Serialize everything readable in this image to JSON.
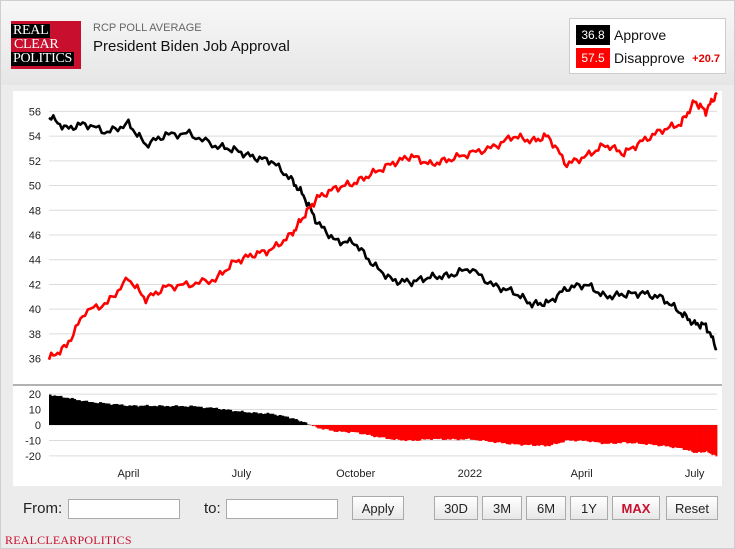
{
  "header": {
    "logo_lines": [
      "REAL",
      "CLEAR",
      "POLITICS"
    ],
    "source": "RCP POLL AVERAGE",
    "title": "President Biden Job Approval"
  },
  "legend": {
    "approve_value": "36.8",
    "approve_label": "Approve",
    "disapprove_value": "57.5",
    "disapprove_label": "Disapprove",
    "spread": "+20.7",
    "approve_color": "#000000",
    "disapprove_color": "#ff0000"
  },
  "controls": {
    "from_label": "From:",
    "to_label": "to:",
    "apply_label": "Apply",
    "ranges": [
      "30D",
      "3M",
      "6M",
      "1Y",
      "MAX"
    ],
    "active_range": "MAX",
    "reset_label": "Reset"
  },
  "footer": {
    "brand": "REALCLEARPOLITICS"
  },
  "chart_data": {
    "type": "line",
    "x_ticks": [
      "April",
      "July",
      "October",
      "2022",
      "April",
      "July"
    ],
    "y_ticks_main": [
      36,
      38,
      40,
      42,
      44,
      46,
      48,
      50,
      52,
      54,
      56
    ],
    "y_ticks_spread": [
      20,
      10,
      0,
      -10,
      -20
    ],
    "ylim_main": [
      35,
      57
    ],
    "ylim_spread": [
      -22,
      22
    ],
    "grid": true,
    "x": [
      "2021-01-27",
      "2021-02-10",
      "2021-02-25",
      "2021-03-15",
      "2021-04-01",
      "2021-04-15",
      "2021-05-01",
      "2021-05-20",
      "2021-06-10",
      "2021-06-25",
      "2021-07-10",
      "2021-07-25",
      "2021-08-10",
      "2021-08-20",
      "2021-08-31",
      "2021-09-15",
      "2021-09-30",
      "2021-10-15",
      "2021-10-31",
      "2021-11-15",
      "2021-11-30",
      "2021-12-15",
      "2022-01-01",
      "2022-01-20",
      "2022-02-05",
      "2022-02-20",
      "2022-03-05",
      "2022-03-20",
      "2022-04-05",
      "2022-04-20",
      "2022-05-05",
      "2022-05-20",
      "2022-06-05",
      "2022-06-20",
      "2022-07-01",
      "2022-07-10",
      "2022-07-19"
    ],
    "series": [
      {
        "name": "Approve",
        "color": "#000000",
        "values": [
          55.6,
          54.6,
          55.0,
          54.3,
          55.0,
          53.3,
          54.1,
          54.2,
          53.2,
          52.9,
          52.3,
          52.0,
          50.5,
          49.2,
          47.0,
          45.5,
          45.4,
          43.6,
          42.3,
          42.2,
          42.6,
          42.7,
          43.3,
          41.9,
          41.4,
          40.4,
          40.5,
          41.7,
          42.0,
          41.0,
          41.2,
          41.3,
          40.9,
          39.7,
          38.8,
          38.7,
          36.8
        ]
      },
      {
        "name": "Disapprove",
        "color": "#ff0000",
        "values": [
          36.0,
          37.0,
          39.8,
          40.5,
          42.5,
          40.8,
          41.8,
          42.0,
          42.4,
          43.8,
          44.4,
          44.8,
          46.0,
          47.5,
          49.0,
          49.8,
          50.2,
          51.0,
          51.8,
          52.4,
          51.7,
          52.1,
          52.6,
          53.1,
          54.0,
          53.6,
          54.0,
          51.7,
          52.4,
          53.3,
          52.6,
          53.6,
          54.5,
          55.0,
          56.8,
          56.0,
          57.5
        ]
      }
    ],
    "spread_values": [
      19.6,
      17.6,
      15.2,
      13.8,
      12.5,
      12.5,
      12.3,
      12.2,
      10.8,
      9.1,
      7.9,
      7.2,
      4.5,
      1.7,
      -2.0,
      -4.3,
      -4.8,
      -7.4,
      -9.5,
      -10.2,
      -9.1,
      -9.4,
      -9.3,
      -11.2,
      -12.6,
      -13.2,
      -13.5,
      -10.0,
      -10.4,
      -12.3,
      -11.4,
      -12.3,
      -13.6,
      -15.3,
      -18.0,
      -17.3,
      -20.7
    ]
  }
}
